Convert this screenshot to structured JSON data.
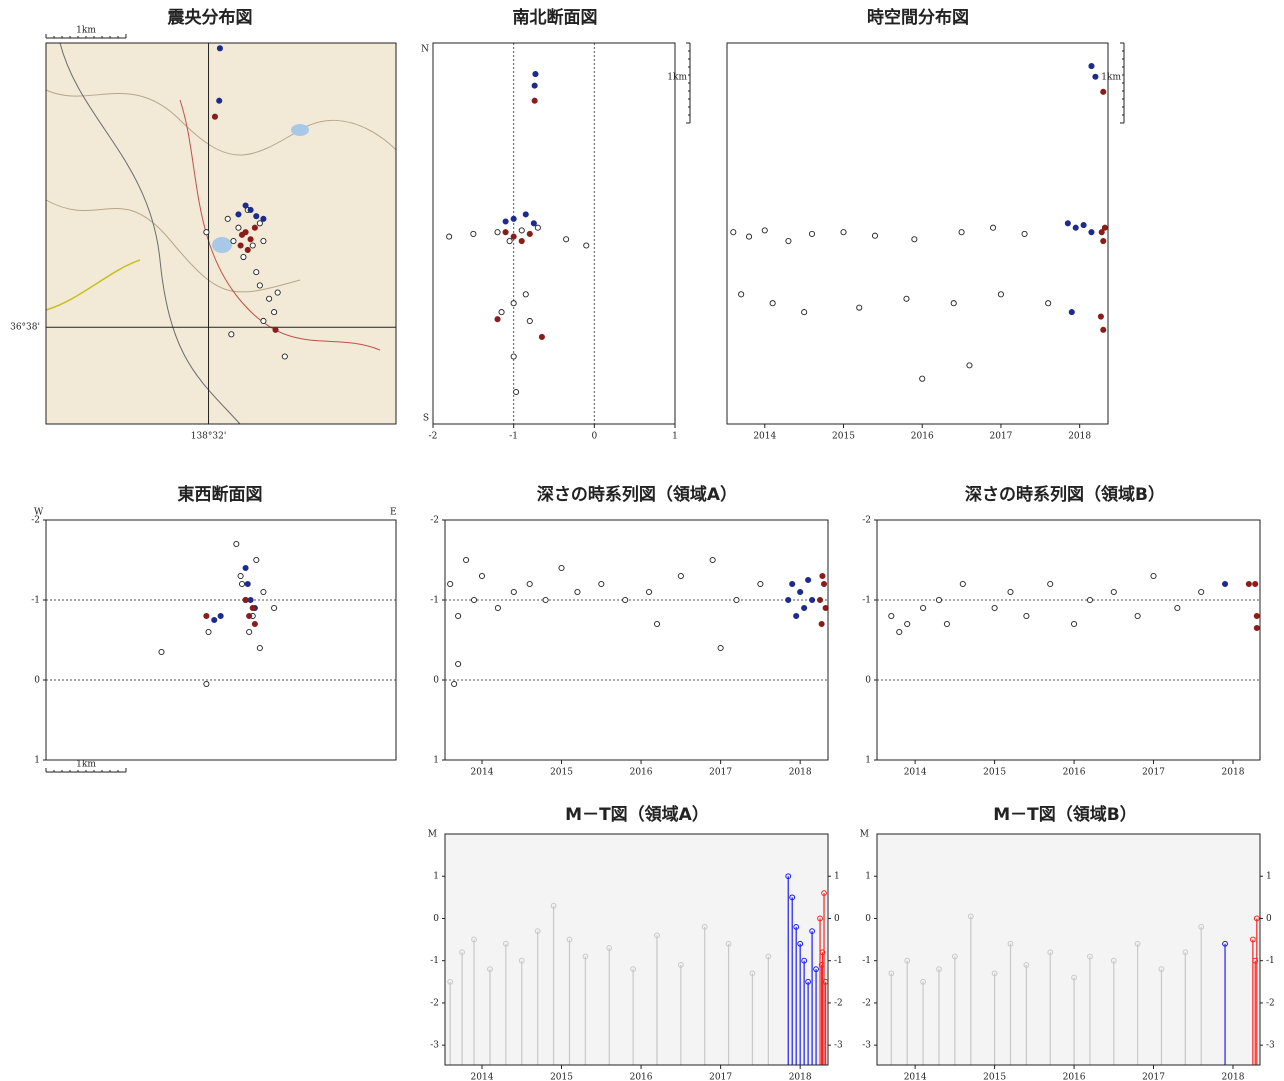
{
  "chart_data": [
    {
      "type": "map",
      "title": "震央分布図",
      "scale_label": "1km",
      "grid": true,
      "xlim": [
        138.5105,
        138.5596
      ],
      "ylim": [
        36.6224,
        36.6653
      ],
      "xticks": [
        {
          "value": 138.5333,
          "label": "138°32'"
        }
      ],
      "yticks": [
        {
          "value": 36.6333,
          "label": "36°38'"
        }
      ],
      "series": [
        {
          "color": "#222222",
          "filled": false,
          "x": [
            138.5375,
            138.5368,
            138.5395,
            138.5405,
            138.5382,
            138.536,
            138.541,
            138.5388,
            138.5405,
            138.5418,
            138.5425,
            138.541,
            138.54,
            138.543,
            138.533,
            138.5365,
            138.544
          ],
          "values": [
            36.6445,
            36.643,
            36.6425,
            36.645,
            36.6412,
            36.6455,
            36.643,
            36.6465,
            36.638,
            36.6365,
            36.635,
            36.634,
            36.6395,
            36.6372,
            36.644,
            36.6325,
            36.63
          ]
        },
        {
          "color": "#1c2b8f",
          "filled": true,
          "x": [
            138.5392,
            138.54,
            138.5385,
            138.541,
            138.5375,
            138.5348,
            138.5349
          ],
          "values": [
            36.6465,
            36.6458,
            36.647,
            36.6455,
            36.646,
            36.6588,
            36.6647
          ]
        },
        {
          "color": "#8b1c1c",
          "filled": true,
          "x": [
            138.5385,
            138.5392,
            138.5378,
            138.5398,
            138.5388,
            138.538,
            138.5427,
            138.5342
          ],
          "values": [
            36.644,
            36.6432,
            36.6425,
            36.6445,
            36.642,
            36.6437,
            36.633,
            36.657
          ]
        }
      ]
    },
    {
      "type": "scatter",
      "title": "南北断面図",
      "scale_label": "1km",
      "y_end_labels": {
        "top": "N",
        "bottom": "S"
      },
      "xlim": [
        -2,
        1
      ],
      "ylim": [
        36.6224,
        36.6653
      ],
      "xticks": [
        -2,
        -1,
        0,
        1
      ],
      "reference_lines": {
        "x": [
          -1,
          0
        ]
      },
      "series": [
        {
          "color": "#222222",
          "filled": false,
          "x": [
            -1.2,
            -1.5,
            -1.8,
            -0.9,
            -1.05,
            -0.7,
            -0.35,
            -0.1,
            -1.0,
            -0.85,
            -1.15,
            -0.8,
            -1.0,
            -0.97
          ],
          "values": [
            36.644,
            36.6438,
            36.6435,
            36.6442,
            36.643,
            36.6445,
            36.6432,
            36.6425,
            36.636,
            36.637,
            36.635,
            36.634,
            36.63,
            36.626
          ]
        },
        {
          "color": "#1c2b8f",
          "filled": true,
          "x": [
            -1.0,
            -0.85,
            -0.75,
            -1.1,
            -0.74,
            -0.73
          ],
          "values": [
            36.6455,
            36.646,
            36.645,
            36.6452,
            36.6605,
            36.6618
          ]
        },
        {
          "color": "#8b1c1c",
          "filled": true,
          "x": [
            -1.0,
            -0.9,
            -1.1,
            -0.8,
            -1.2,
            -0.74,
            -0.65
          ],
          "values": [
            36.6435,
            36.643,
            36.644,
            36.6438,
            36.6342,
            36.6588,
            36.6322
          ]
        }
      ]
    },
    {
      "type": "scatter",
      "title": "時空間分布図",
      "scale_label": "1km",
      "xlim": [
        2013.52,
        2018.36
      ],
      "ylim": [
        36.6224,
        36.6653
      ],
      "xticks": [
        2014,
        2015,
        2016,
        2017,
        2018
      ],
      "series": [
        {
          "color": "#222222",
          "filled": false,
          "x": [
            2013.6,
            2013.8,
            2014.0,
            2014.3,
            2014.6,
            2015.0,
            2015.4,
            2015.9,
            2016.5,
            2016.9,
            2017.3,
            2013.7,
            2014.1,
            2014.5,
            2015.2,
            2015.8,
            2016.4,
            2017.0,
            2017.6,
            2016.0,
            2016.6
          ],
          "values": [
            36.644,
            36.6435,
            36.6442,
            36.643,
            36.6438,
            36.644,
            36.6436,
            36.6432,
            36.644,
            36.6445,
            36.6438,
            36.637,
            36.636,
            36.635,
            36.6355,
            36.6365,
            36.636,
            36.637,
            36.636,
            36.6275,
            36.629
          ]
        },
        {
          "color": "#1c2b8f",
          "filled": true,
          "x": [
            2017.85,
            2017.95,
            2018.05,
            2018.15,
            2017.9,
            2018.15,
            2018.2
          ],
          "values": [
            36.645,
            36.6445,
            36.6448,
            36.644,
            36.635,
            36.6627,
            36.6615
          ]
        },
        {
          "color": "#8b1c1c",
          "filled": true,
          "x": [
            2018.28,
            2018.3,
            2018.32,
            2018.27,
            2018.3,
            2018.3
          ],
          "values": [
            36.644,
            36.643,
            36.6445,
            36.6345,
            36.633,
            36.6598
          ]
        }
      ]
    },
    {
      "type": "scatter",
      "title": "東西断面図",
      "scale_label": "1km",
      "x_end_labels": {
        "left": "W",
        "right": "E"
      },
      "xlim": [
        138.5105,
        138.5596
      ],
      "ylim": [
        1,
        -2
      ],
      "yticks": [
        -2,
        -1,
        0,
        1
      ],
      "reference_lines": {
        "y": [
          -1,
          0
        ]
      },
      "series": [
        {
          "color": "#222222",
          "filled": false,
          "x": [
            138.5385,
            138.5378,
            138.5395,
            138.54,
            138.5372,
            138.541,
            138.539,
            138.5405,
            138.538,
            138.5425,
            138.5267,
            138.5333,
            138.533
          ],
          "values": [
            -1.0,
            -1.3,
            -0.8,
            -1.5,
            -1.7,
            -1.1,
            -0.6,
            -0.4,
            -1.2,
            -0.9,
            -0.35,
            -0.6,
            0.05
          ]
        },
        {
          "color": "#1c2b8f",
          "filled": true,
          "x": [
            138.5392,
            138.5388,
            138.5398,
            138.5385,
            138.5341,
            138.535
          ],
          "values": [
            -1.0,
            -1.2,
            -0.9,
            -1.4,
            -0.75,
            -0.8
          ]
        },
        {
          "color": "#8b1c1c",
          "filled": true,
          "x": [
            138.539,
            138.5395,
            138.5385,
            138.5398,
            138.533
          ],
          "values": [
            -0.8,
            -0.9,
            -1.0,
            -0.7,
            -0.8
          ]
        }
      ]
    },
    {
      "type": "scatter",
      "title": "深さの時系列図（領域A）",
      "xlim": [
        2013.535,
        2018.35
      ],
      "ylim": [
        1,
        -2
      ],
      "xticks": [
        2014,
        2015,
        2016,
        2017,
        2018
      ],
      "yticks": [
        -2,
        -1,
        0,
        1
      ],
      "reference_lines": {
        "y": [
          -1,
          0
        ]
      },
      "series": [
        {
          "color": "#222222",
          "filled": false,
          "x": [
            2013.6,
            2013.7,
            2013.8,
            2013.9,
            2014.0,
            2014.2,
            2014.4,
            2014.6,
            2014.8,
            2015.0,
            2015.2,
            2015.5,
            2015.8,
            2016.1,
            2016.5,
            2016.9,
            2017.2,
            2017.5,
            2013.7,
            2013.65,
            2016.2,
            2017.0
          ],
          "values": [
            -1.2,
            -0.8,
            -1.5,
            -1.0,
            -1.3,
            -0.9,
            -1.1,
            -1.2,
            -1.0,
            -1.4,
            -1.1,
            -1.2,
            -1.0,
            -1.1,
            -1.3,
            -1.5,
            -1.0,
            -1.2,
            -0.2,
            0.05,
            -0.7,
            -0.4
          ]
        },
        {
          "color": "#1c2b8f",
          "filled": true,
          "x": [
            2017.85,
            2017.9,
            2017.95,
            2018.0,
            2018.05,
            2018.1,
            2018.15
          ],
          "values": [
            -1.0,
            -1.2,
            -0.8,
            -1.1,
            -0.9,
            -1.25,
            -1.0
          ]
        },
        {
          "color": "#8b1c1c",
          "filled": true,
          "x": [
            2018.25,
            2018.27,
            2018.3,
            2018.32,
            2018.28
          ],
          "values": [
            -1.0,
            -0.7,
            -1.2,
            -0.9,
            -1.3
          ]
        }
      ]
    },
    {
      "type": "scatter",
      "title": "深さの時系列図（領域B）",
      "xlim": [
        2013.52,
        2018.34
      ],
      "ylim": [
        1,
        -2
      ],
      "xticks": [
        2014,
        2015,
        2016,
        2017,
        2018
      ],
      "yticks": [
        -2,
        -1,
        0,
        1
      ],
      "reference_lines": {
        "y": [
          -1,
          0
        ]
      },
      "series": [
        {
          "color": "#222222",
          "filled": false,
          "x": [
            2013.7,
            2013.8,
            2013.9,
            2014.1,
            2014.3,
            2014.4,
            2014.6,
            2015.0,
            2015.2,
            2015.4,
            2015.7,
            2016.0,
            2016.2,
            2016.5,
            2016.8,
            2017.0,
            2017.3,
            2017.6
          ],
          "values": [
            -0.8,
            -0.6,
            -0.7,
            -0.9,
            -1.0,
            -0.7,
            -1.2,
            -0.9,
            -1.1,
            -0.8,
            -1.2,
            -0.7,
            -1.0,
            -1.1,
            -0.8,
            -1.3,
            -0.9,
            -1.1
          ]
        },
        {
          "color": "#1c2b8f",
          "filled": true,
          "x": [
            2017.9
          ],
          "values": [
            -1.2
          ]
        },
        {
          "color": "#8b1c1c",
          "filled": true,
          "x": [
            2018.2,
            2018.28,
            2018.3,
            2018.3
          ],
          "values": [
            -1.2,
            -1.2,
            -0.8,
            -0.65
          ]
        }
      ]
    },
    {
      "type": "stem",
      "title": "M－T図（領域A）",
      "y_axis_label": "M",
      "right_axis": true,
      "xlim": [
        2013.535,
        2018.35
      ],
      "ylim": [
        -3.47,
        2
      ],
      "xticks": [
        2014,
        2015,
        2016,
        2017,
        2018
      ],
      "yticks": [
        -3,
        -2,
        -1,
        0,
        1
      ],
      "series": [
        {
          "color": "#c8c8c8",
          "x": [
            2013.6,
            2013.75,
            2013.9,
            2014.1,
            2014.3,
            2014.5,
            2014.7,
            2014.9,
            2015.1,
            2015.3,
            2015.6,
            2015.9,
            2016.2,
            2016.5,
            2016.8,
            2017.1,
            2017.4,
            2017.6
          ],
          "values": [
            -1.5,
            -0.8,
            -0.5,
            -1.2,
            -0.6,
            -1.0,
            -0.3,
            0.3,
            -0.5,
            -0.9,
            -0.7,
            -1.2,
            -0.4,
            -1.1,
            -0.2,
            -0.6,
            -1.3,
            -0.9
          ]
        },
        {
          "color": "#1a1aff",
          "x": [
            2017.85,
            2017.9,
            2017.95,
            2018.0,
            2018.05,
            2018.1,
            2018.15,
            2018.2
          ],
          "values": [
            1.0,
            0.5,
            -0.2,
            -0.6,
            -1.0,
            -1.5,
            -0.3,
            -1.2
          ]
        },
        {
          "color": "#ff2020",
          "x": [
            2018.25,
            2018.28,
            2018.3,
            2018.32,
            2018.27
          ],
          "values": [
            0.0,
            -0.8,
            0.6,
            -1.5,
            -1.1
          ]
        }
      ]
    },
    {
      "type": "stem",
      "title": "M－T図（領域B）",
      "y_axis_label": "M",
      "right_axis": true,
      "xlim": [
        2013.52,
        2018.34
      ],
      "ylim": [
        -3.47,
        2
      ],
      "xticks": [
        2014,
        2015,
        2016,
        2017,
        2018
      ],
      "yticks": [
        -3,
        -2,
        -1,
        0,
        1
      ],
      "series": [
        {
          "color": "#c8c8c8",
          "x": [
            2013.7,
            2013.9,
            2014.1,
            2014.3,
            2014.5,
            2014.7,
            2015.0,
            2015.2,
            2015.4,
            2015.7,
            2016.0,
            2016.2,
            2016.5,
            2016.8,
            2017.1,
            2017.4,
            2017.6
          ],
          "values": [
            -1.3,
            -1.0,
            -1.5,
            -1.2,
            -0.9,
            0.05,
            -1.3,
            -0.6,
            -1.1,
            -0.8,
            -1.4,
            -0.9,
            -1.0,
            -0.6,
            -1.2,
            -0.8,
            -0.2
          ]
        },
        {
          "color": "#1a1aff",
          "x": [
            2017.9
          ],
          "values": [
            -0.6
          ]
        },
        {
          "color": "#ff2020",
          "x": [
            2018.25,
            2018.28,
            2018.3
          ],
          "values": [
            -0.5,
            -1.0,
            0.0
          ]
        }
      ]
    }
  ]
}
